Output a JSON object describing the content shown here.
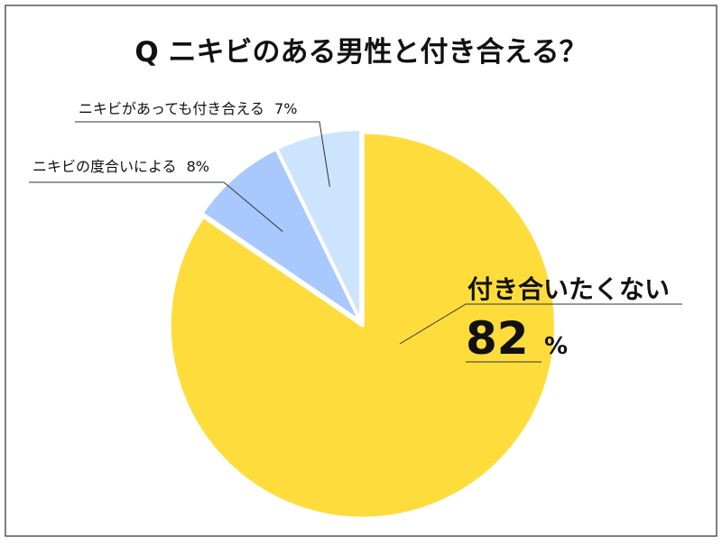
{
  "chart_data": {
    "type": "pie",
    "title": "Q ニキビのある男性と付き合える？",
    "slices": [
      {
        "label": "付き合いたくない",
        "value": 82,
        "value_text": "82",
        "unit": "%",
        "color": "#FEDC3C"
      },
      {
        "label": "ニキビの度合いによる",
        "value": 8,
        "value_text": "8%",
        "color": "#A9C8FE"
      },
      {
        "label": "ニキビがあっても付き合える",
        "value": 7,
        "value_text": "7%",
        "color": "#CDE4FF"
      }
    ],
    "legend": "none",
    "start_angle": "12 o'clock, clockwise"
  },
  "colors": {
    "border": "#555555",
    "slice_stroke": "#ffffff",
    "leader": "#333333",
    "text": "#111111"
  }
}
